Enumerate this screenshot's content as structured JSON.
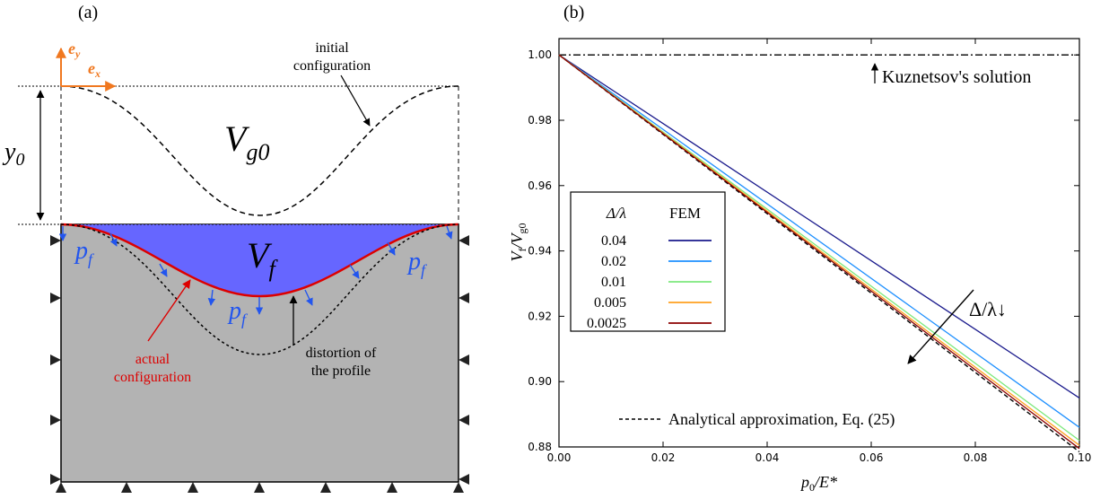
{
  "panel_a": {
    "label": "(a)",
    "ey_label": "e",
    "ey_sub": "y",
    "ex_label": "e",
    "ex_sub": "x",
    "y0_label": "y",
    "y0_sub": "0",
    "vg0_label": "V",
    "vg0_sub": "g0",
    "vf_label": "V",
    "vf_sub": "f",
    "pf_label": "p",
    "pf_sub": "f",
    "initial_line1": "initial",
    "initial_line2": "configuration",
    "actual_line1": "actual",
    "actual_line2": "configuration",
    "distortion_line1": "distortion of",
    "distortion_line2": "the profile",
    "colors": {
      "fluid": "#6666ff",
      "solid": "#b3b3b3",
      "actual": "#dd0000",
      "pressure": "#2255ee",
      "axes": "#f07820"
    }
  },
  "panel_b": {
    "label": "(b)",
    "legend_header_left": "Δ/λ",
    "legend_header_right": "FEM",
    "kuznetsov_label": "Kuznetsov's solution",
    "analytical_label": "Analytical approximation, Eq. (25)",
    "arrow_label": "Δ/λ↓",
    "ylabel_main": "V",
    "ylabel_sub1": "f",
    "ylabel_mid": "/V",
    "ylabel_sub2": "g0",
    "xlabel_main": "p",
    "xlabel_sub": "0",
    "xlabel_rest": "/E*"
  },
  "chart_data": {
    "type": "line",
    "xlabel": "p0/E*",
    "ylabel": "Vf/Vg0",
    "xlim": [
      0.0,
      0.1
    ],
    "ylim": [
      0.88,
      1.005
    ],
    "xticks": [
      "0.00",
      "0.02",
      "0.04",
      "0.06",
      "0.08",
      "0.10"
    ],
    "yticks": [
      "0.88",
      "0.90",
      "0.92",
      "0.94",
      "0.96",
      "0.98",
      "1.00"
    ],
    "legend_title": "Δ/λ   FEM",
    "legend_position": "left-center",
    "series": [
      {
        "name": "0.04",
        "color": "#1a1a8c",
        "x": [
          0,
          0.1
        ],
        "y": [
          1.0,
          0.895
        ]
      },
      {
        "name": "0.02",
        "color": "#1e90ff",
        "x": [
          0,
          0.1
        ],
        "y": [
          1.0,
          0.886
        ]
      },
      {
        "name": "0.01",
        "color": "#7de87d",
        "x": [
          0,
          0.1
        ],
        "y": [
          1.0,
          0.882
        ]
      },
      {
        "name": "0.005",
        "color": "#ffa020",
        "x": [
          0,
          0.1
        ],
        "y": [
          1.0,
          0.8805
        ]
      },
      {
        "name": "0.0025",
        "color": "#8b0000",
        "x": [
          0,
          0.1
        ],
        "y": [
          1.0,
          0.8795
        ]
      }
    ],
    "reference_lines": [
      {
        "name": "Kuznetsov's solution",
        "style": "dash-dot",
        "color": "#000000",
        "x": [
          0,
          0.1
        ],
        "y": [
          1.0,
          1.0
        ]
      },
      {
        "name": "Analytical approximation, Eq. (25)",
        "style": "dashed",
        "color": "#000000",
        "x": [
          0,
          0.1
        ],
        "y": [
          1.0,
          0.8785
        ]
      }
    ]
  }
}
